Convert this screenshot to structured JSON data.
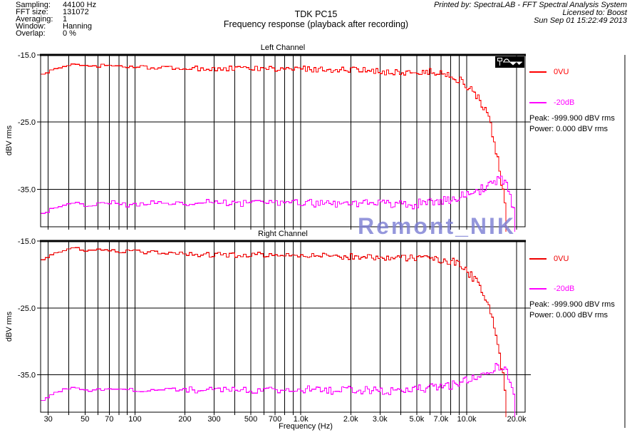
{
  "header": {
    "params": [
      {
        "label": "Sampling:",
        "value": "44100 Hz"
      },
      {
        "label": "FFT size:",
        "value": "131072"
      },
      {
        "label": "Averaging:",
        "value": "1"
      },
      {
        "label": "Window:",
        "value": "Hanning"
      },
      {
        "label": "Overlap:",
        "value": "0 %"
      }
    ],
    "title_line1": "TDK PC15",
    "title_line2": "Frequency response (playback after recording)",
    "printed_by": "Printed by: SpectraLAB - FFT Spectral Analysis System",
    "licensed_to": "Licensed to: Boost",
    "datetime": "Sun Sep 01 15:22:49 2013"
  },
  "watermark": {
    "text": "Remont_NIK",
    "color": "#7b7ed4"
  },
  "icons": {
    "chart_corner": "waveform-icon"
  },
  "chart_data": [
    {
      "type": "line",
      "title": "Left Channel",
      "xlabel": "",
      "ylabel": "dBV rms",
      "xscale": "log",
      "xlim": [
        27,
        22500
      ],
      "ylim": [
        -40.6,
        -15.0
      ],
      "grid": true,
      "legend_position": "right",
      "yticks": [
        -15.0,
        -25.0,
        -35.0
      ],
      "ytick_labels": [
        "-15.0",
        "-25.0",
        "-35.0"
      ],
      "xticks": [
        30,
        50,
        70,
        100,
        200,
        300,
        500,
        700,
        1000,
        2000,
        3000,
        5000,
        7000,
        10000,
        20000
      ],
      "xtick_labels": [
        "30",
        "50",
        "70",
        "100",
        "200",
        "300",
        "500",
        "700",
        "1.0k",
        "2.0k",
        "3.0k",
        "5.0k",
        "7.0k",
        "10.0k",
        "20.0k"
      ],
      "show_xtick_labels": false,
      "peak_text": "Peak: -999.900 dBV rms",
      "power_text": "Power: 0.000 dBV rms",
      "series": [
        {
          "name": "0VU",
          "color": "#ff0000",
          "noise": 0.6,
          "points": [
            [
              27,
              -17.9
            ],
            [
              32,
              -17.1
            ],
            [
              38,
              -16.6
            ],
            [
              43,
              -16.25
            ],
            [
              50,
              -16.7
            ],
            [
              57,
              -16.75
            ],
            [
              62,
              -16.5
            ],
            [
              75,
              -16.7
            ],
            [
              100,
              -16.8
            ],
            [
              140,
              -16.9
            ],
            [
              200,
              -17.0
            ],
            [
              300,
              -17.1
            ],
            [
              450,
              -17.0
            ],
            [
              700,
              -17.1
            ],
            [
              1000,
              -17.1
            ],
            [
              1500,
              -17.15
            ],
            [
              2200,
              -17.3
            ],
            [
              3200,
              -17.5
            ],
            [
              4500,
              -17.6
            ],
            [
              6000,
              -17.6
            ],
            [
              7500,
              -17.8
            ],
            [
              8500,
              -18.4
            ],
            [
              9500,
              -19.2
            ],
            [
              10500,
              -20.2
            ],
            [
              11500,
              -21.4
            ],
            [
              12500,
              -22.9
            ],
            [
              13300,
              -24.3
            ],
            [
              14000,
              -26.2
            ],
            [
              14800,
              -29.0
            ],
            [
              15500,
              -31.8
            ],
            [
              16100,
              -34.3
            ],
            [
              16700,
              -36.8
            ],
            [
              17200,
              -39.0
            ],
            [
              17600,
              -41.3
            ]
          ]
        },
        {
          "name": "-20dB",
          "color": "#ff00ff",
          "noise": 0.75,
          "points": [
            [
              27,
              -38.6
            ],
            [
              31,
              -37.9
            ],
            [
              36,
              -37.3
            ],
            [
              42,
              -37.0
            ],
            [
              48,
              -37.2
            ],
            [
              51,
              -37.8
            ],
            [
              56,
              -37.2
            ],
            [
              65,
              -37.0
            ],
            [
              80,
              -37.1
            ],
            [
              95,
              -37.5
            ],
            [
              110,
              -37.1
            ],
            [
              150,
              -37.0
            ],
            [
              250,
              -37.0
            ],
            [
              400,
              -37.1
            ],
            [
              600,
              -37.1
            ],
            [
              900,
              -37.0
            ],
            [
              1400,
              -37.1
            ],
            [
              2000,
              -37.1
            ],
            [
              3000,
              -37.2
            ],
            [
              4000,
              -37.3
            ],
            [
              5000,
              -37.2
            ],
            [
              6000,
              -37.0
            ],
            [
              7000,
              -36.8
            ],
            [
              8000,
              -36.5
            ],
            [
              9000,
              -36.2
            ],
            [
              10000,
              -35.9
            ],
            [
              11000,
              -35.5
            ],
            [
              12000,
              -35.0
            ],
            [
              13000,
              -34.6
            ],
            [
              14200,
              -34.1
            ],
            [
              15300,
              -33.8
            ],
            [
              16200,
              -33.6
            ],
            [
              16800,
              -34.0
            ],
            [
              17500,
              -35.0
            ],
            [
              18200,
              -36.4
            ],
            [
              18800,
              -37.8
            ],
            [
              19300,
              -39.4
            ],
            [
              19700,
              -41.3
            ]
          ]
        }
      ]
    },
    {
      "type": "line",
      "title": "Right Channel",
      "xlabel": "Frequency (Hz)",
      "ylabel": "dBV rms",
      "xscale": "log",
      "xlim": [
        27,
        22500
      ],
      "ylim": [
        -40.6,
        -15.0
      ],
      "grid": true,
      "legend_position": "right",
      "yticks": [
        -15.0,
        -25.0,
        -35.0
      ],
      "ytick_labels": [
        "-15.0",
        "-25.0",
        "-35.0"
      ],
      "xticks": [
        30,
        50,
        70,
        100,
        200,
        300,
        500,
        700,
        1000,
        2000,
        3000,
        5000,
        7000,
        10000,
        20000
      ],
      "xtick_labels": [
        "30",
        "50",
        "70",
        "100",
        "200",
        "300",
        "500",
        "700",
        "1.0k",
        "2.0k",
        "3.0k",
        "5.0k",
        "7.0k",
        "10.0k",
        "20.0k"
      ],
      "show_xtick_labels": true,
      "peak_text": "Peak: -999.900 dBV rms",
      "power_text": "Power: 0.000 dBV rms",
      "series": [
        {
          "name": "0VU",
          "color": "#ee0000",
          "noise": 0.6,
          "points": [
            [
              27,
              -17.8
            ],
            [
              32,
              -16.9
            ],
            [
              38,
              -16.3
            ],
            [
              44,
              -16.0
            ],
            [
              50,
              -16.6
            ],
            [
              60,
              -16.15
            ],
            [
              72,
              -16.5
            ],
            [
              100,
              -16.6
            ],
            [
              150,
              -16.75
            ],
            [
              200,
              -16.8
            ],
            [
              300,
              -17.1
            ],
            [
              500,
              -17.0
            ],
            [
              800,
              -17.1
            ],
            [
              1200,
              -17.1
            ],
            [
              2000,
              -17.3
            ],
            [
              3000,
              -17.4
            ],
            [
              4500,
              -17.5
            ],
            [
              6000,
              -17.6
            ],
            [
              7500,
              -17.8
            ],
            [
              8500,
              -18.3
            ],
            [
              9500,
              -19.1
            ],
            [
              10500,
              -20.1
            ],
            [
              11500,
              -21.3
            ],
            [
              12500,
              -22.8
            ],
            [
              13300,
              -24.2
            ],
            [
              14000,
              -26.0
            ],
            [
              14800,
              -28.8
            ],
            [
              15500,
              -31.5
            ],
            [
              16100,
              -34.0
            ],
            [
              16700,
              -36.6
            ],
            [
              17200,
              -39.0
            ],
            [
              17600,
              -41.3
            ]
          ]
        },
        {
          "name": "-20dB",
          "color": "#ff00ff",
          "noise": 0.75,
          "points": [
            [
              27,
              -38.9
            ],
            [
              31,
              -38.0
            ],
            [
              36,
              -37.3
            ],
            [
              42,
              -36.9
            ],
            [
              48,
              -37.1
            ],
            [
              51,
              -37.7
            ],
            [
              58,
              -37.2
            ],
            [
              70,
              -37.1
            ],
            [
              90,
              -37.3
            ],
            [
              120,
              -37.2
            ],
            [
              200,
              -37.3
            ],
            [
              350,
              -37.2
            ],
            [
              600,
              -37.3
            ],
            [
              1000,
              -37.2
            ],
            [
              1600,
              -37.3
            ],
            [
              2400,
              -37.3
            ],
            [
              3500,
              -37.4
            ],
            [
              5000,
              -37.2
            ],
            [
              6500,
              -36.9
            ],
            [
              8000,
              -36.5
            ],
            [
              9000,
              -36.2
            ],
            [
              10000,
              -35.8
            ],
            [
              11000,
              -35.4
            ],
            [
              12000,
              -35.0
            ],
            [
              13000,
              -34.5
            ],
            [
              14200,
              -34.0
            ],
            [
              15300,
              -33.7
            ],
            [
              16200,
              -33.5
            ],
            [
              16800,
              -33.9
            ],
            [
              17500,
              -35.0
            ],
            [
              18200,
              -36.3
            ],
            [
              18800,
              -37.8
            ],
            [
              19300,
              -39.5
            ],
            [
              19700,
              -41.3
            ]
          ]
        }
      ]
    }
  ]
}
